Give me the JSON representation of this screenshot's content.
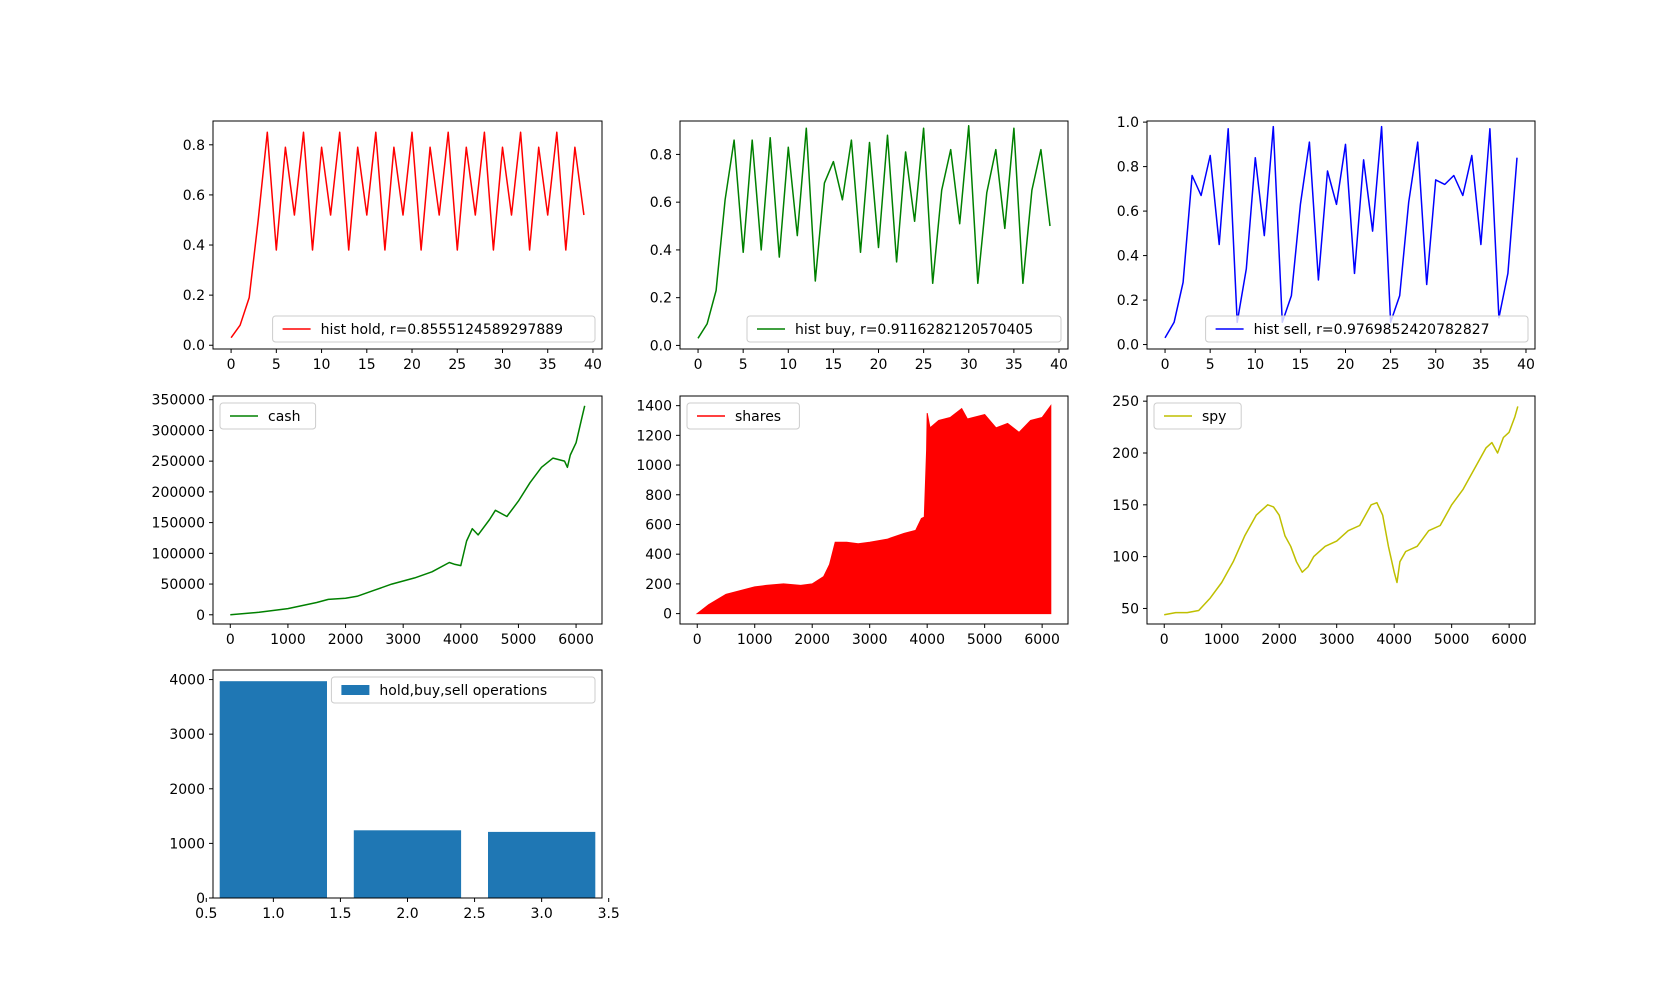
{
  "chart_data": [
    {
      "id": "hold",
      "type": "line",
      "xlim": [
        -2,
        41
      ],
      "ylim": [
        -0.015,
        0.895
      ],
      "xticks": [
        "0",
        "5",
        "10",
        "15",
        "20",
        "25",
        "30",
        "35",
        "40"
      ],
      "yticks": [
        "0.0",
        "0.2",
        "0.4",
        "0.6",
        "0.8"
      ],
      "legend_position": "lower-right",
      "series": [
        {
          "name": "hist hold, r=0.8555124589297889",
          "color": "#ff0000",
          "x": [
            0,
            1,
            2,
            3,
            4,
            5,
            6,
            7,
            8,
            9,
            10,
            11,
            12,
            13,
            14,
            15,
            16,
            17,
            18,
            19,
            20,
            21,
            22,
            23,
            24,
            25,
            26,
            27,
            28,
            29,
            30,
            31,
            32,
            33,
            34,
            35,
            36,
            37,
            38,
            39
          ],
          "values": [
            0.03,
            0.08,
            0.19,
            0.5,
            0.85,
            0.38,
            0.79,
            0.52,
            0.85,
            0.38,
            0.79,
            0.52,
            0.85,
            0.38,
            0.79,
            0.52,
            0.85,
            0.38,
            0.79,
            0.52,
            0.85,
            0.38,
            0.79,
            0.52,
            0.85,
            0.38,
            0.79,
            0.52,
            0.85,
            0.38,
            0.79,
            0.52,
            0.85,
            0.38,
            0.79,
            0.52,
            0.85,
            0.38,
            0.79,
            0.52
          ]
        }
      ]
    },
    {
      "id": "buy",
      "type": "line",
      "xlim": [
        -2,
        41
      ],
      "ylim": [
        -0.015,
        0.94
      ],
      "xticks": [
        "0",
        "5",
        "10",
        "15",
        "20",
        "25",
        "30",
        "35",
        "40"
      ],
      "yticks": [
        "0.0",
        "0.2",
        "0.4",
        "0.6",
        "0.8"
      ],
      "legend_position": "lower-right",
      "series": [
        {
          "name": "hist buy, r=0.9116282120570405",
          "color": "#008000",
          "x": [
            0,
            1,
            2,
            3,
            4,
            5,
            6,
            7,
            8,
            9,
            10,
            11,
            12,
            13,
            14,
            15,
            16,
            17,
            18,
            19,
            20,
            21,
            22,
            23,
            24,
            25,
            26,
            27,
            28,
            29,
            30,
            31,
            32,
            33,
            34,
            35,
            36,
            37,
            38,
            39
          ],
          "values": [
            0.03,
            0.09,
            0.23,
            0.61,
            0.86,
            0.39,
            0.86,
            0.4,
            0.87,
            0.37,
            0.83,
            0.46,
            0.91,
            0.27,
            0.68,
            0.77,
            0.61,
            0.86,
            0.39,
            0.85,
            0.41,
            0.88,
            0.35,
            0.81,
            0.52,
            0.91,
            0.26,
            0.65,
            0.82,
            0.51,
            0.92,
            0.26,
            0.64,
            0.82,
            0.49,
            0.91,
            0.26,
            0.65,
            0.82,
            0.5
          ]
        }
      ]
    },
    {
      "id": "sell",
      "type": "line",
      "xlim": [
        -2,
        41
      ],
      "ylim": [
        -0.02,
        1.005
      ],
      "xticks": [
        "0",
        "5",
        "10",
        "15",
        "20",
        "25",
        "30",
        "35",
        "40"
      ],
      "yticks": [
        "0.0",
        "0.2",
        "0.4",
        "0.6",
        "0.8",
        "1.0"
      ],
      "legend_position": "lower-right",
      "series": [
        {
          "name": "hist sell, r=0.9769852420782827",
          "color": "#0000ff",
          "x": [
            0,
            1,
            2,
            3,
            4,
            5,
            6,
            7,
            8,
            9,
            10,
            11,
            12,
            13,
            14,
            15,
            16,
            17,
            18,
            19,
            20,
            21,
            22,
            23,
            24,
            25,
            26,
            27,
            28,
            29,
            30,
            31,
            32,
            33,
            34,
            35,
            36,
            37,
            38,
            39
          ],
          "values": [
            0.03,
            0.1,
            0.28,
            0.76,
            0.67,
            0.85,
            0.45,
            0.97,
            0.1,
            0.34,
            0.84,
            0.49,
            0.98,
            0.1,
            0.22,
            0.63,
            0.91,
            0.29,
            0.78,
            0.63,
            0.9,
            0.32,
            0.83,
            0.51,
            0.98,
            0.1,
            0.22,
            0.64,
            0.91,
            0.27,
            0.74,
            0.72,
            0.76,
            0.67,
            0.85,
            0.45,
            0.97,
            0.12,
            0.32,
            0.84
          ]
        }
      ]
    },
    {
      "id": "cash",
      "type": "line",
      "xlim": [
        -300,
        6450
      ],
      "ylim": [
        -15000,
        356000
      ],
      "xticks": [
        "0",
        "1000",
        "2000",
        "3000",
        "4000",
        "5000",
        "6000"
      ],
      "yticks": [
        "0",
        "50000",
        "100000",
        "150000",
        "200000",
        "250000",
        "300000",
        "350000"
      ],
      "legend_position": "upper-left",
      "series": [
        {
          "name": "cash",
          "color": "#008000",
          "x": [
            0,
            500,
            1000,
            1500,
            1700,
            2000,
            2200,
            2500,
            2800,
            3000,
            3200,
            3500,
            3800,
            3900,
            4000,
            4100,
            4200,
            4300,
            4500,
            4600,
            4800,
            5000,
            5200,
            5400,
            5600,
            5800,
            5850,
            5900,
            6000,
            6100,
            6150
          ],
          "values": [
            0,
            4000,
            10000,
            20000,
            25000,
            27000,
            30000,
            40000,
            50000,
            55000,
            60000,
            70000,
            85000,
            82000,
            80000,
            120000,
            140000,
            130000,
            155000,
            170000,
            160000,
            185000,
            215000,
            240000,
            255000,
            250000,
            240000,
            260000,
            280000,
            320000,
            340000
          ]
        }
      ]
    },
    {
      "id": "shares",
      "type": "area",
      "xlim": [
        -300,
        6450
      ],
      "ylim": [
        -70,
        1465
      ],
      "xticks": [
        "0",
        "1000",
        "2000",
        "3000",
        "4000",
        "5000",
        "6000"
      ],
      "yticks": [
        "0",
        "200",
        "400",
        "600",
        "800",
        "1000",
        "1200",
        "1400"
      ],
      "legend_position": "upper-left",
      "series": [
        {
          "name": "shares",
          "color": "#ff0000",
          "x": [
            0,
            200,
            500,
            800,
            1000,
            1200,
            1500,
            1800,
            2000,
            2200,
            2300,
            2400,
            2600,
            2800,
            3000,
            3300,
            3600,
            3800,
            3900,
            3950,
            3990,
            4000,
            4050,
            4200,
            4400,
            4600,
            4700,
            4800,
            5000,
            5200,
            5400,
            5600,
            5800,
            6000,
            6150
          ],
          "values": [
            0,
            60,
            130,
            160,
            180,
            190,
            200,
            190,
            200,
            250,
            330,
            480,
            480,
            470,
            480,
            500,
            540,
            560,
            640,
            650,
            1100,
            1350,
            1250,
            1300,
            1320,
            1380,
            1310,
            1320,
            1340,
            1250,
            1280,
            1220,
            1300,
            1320,
            1400
          ]
        }
      ]
    },
    {
      "id": "spy",
      "type": "line",
      "xlim": [
        -300,
        6450
      ],
      "ylim": [
        35,
        255
      ],
      "xticks": [
        "0",
        "1000",
        "2000",
        "3000",
        "4000",
        "5000",
        "6000"
      ],
      "yticks": [
        "50",
        "100",
        "150",
        "200",
        "250"
      ],
      "legend_position": "upper-left",
      "series": [
        {
          "name": "spy",
          "color": "#bfbf00",
          "x": [
            0,
            200,
            400,
            600,
            800,
            1000,
            1200,
            1400,
            1600,
            1800,
            1900,
            2000,
            2100,
            2200,
            2300,
            2400,
            2500,
            2600,
            2800,
            3000,
            3200,
            3400,
            3600,
            3700,
            3800,
            3900,
            4000,
            4050,
            4100,
            4200,
            4400,
            4600,
            4800,
            5000,
            5200,
            5400,
            5600,
            5700,
            5800,
            5900,
            6000,
            6100,
            6150
          ],
          "values": [
            44,
            46,
            46,
            48,
            60,
            75,
            95,
            120,
            140,
            150,
            148,
            140,
            120,
            110,
            95,
            85,
            90,
            100,
            110,
            115,
            125,
            130,
            150,
            152,
            140,
            110,
            85,
            75,
            95,
            105,
            110,
            125,
            130,
            150,
            165,
            185,
            205,
            210,
            200,
            215,
            220,
            235,
            245
          ]
        }
      ]
    },
    {
      "id": "ops",
      "type": "bar",
      "xlim": [
        0.55,
        3.45
      ],
      "ylim": [
        0,
        4175
      ],
      "xticks": [
        "0.5",
        "1.0",
        "1.5",
        "2.0",
        "2.5",
        "3.0",
        "3.5"
      ],
      "yticks": [
        "0",
        "1000",
        "2000",
        "3000",
        "4000"
      ],
      "legend_position": "upper-right",
      "categories": [
        1,
        2,
        3
      ],
      "bar_width": 0.8,
      "series": [
        {
          "name": "hold,buy,sell operations",
          "color": "#1f77b4",
          "values": [
            3970,
            1240,
            1210
          ]
        }
      ]
    }
  ]
}
